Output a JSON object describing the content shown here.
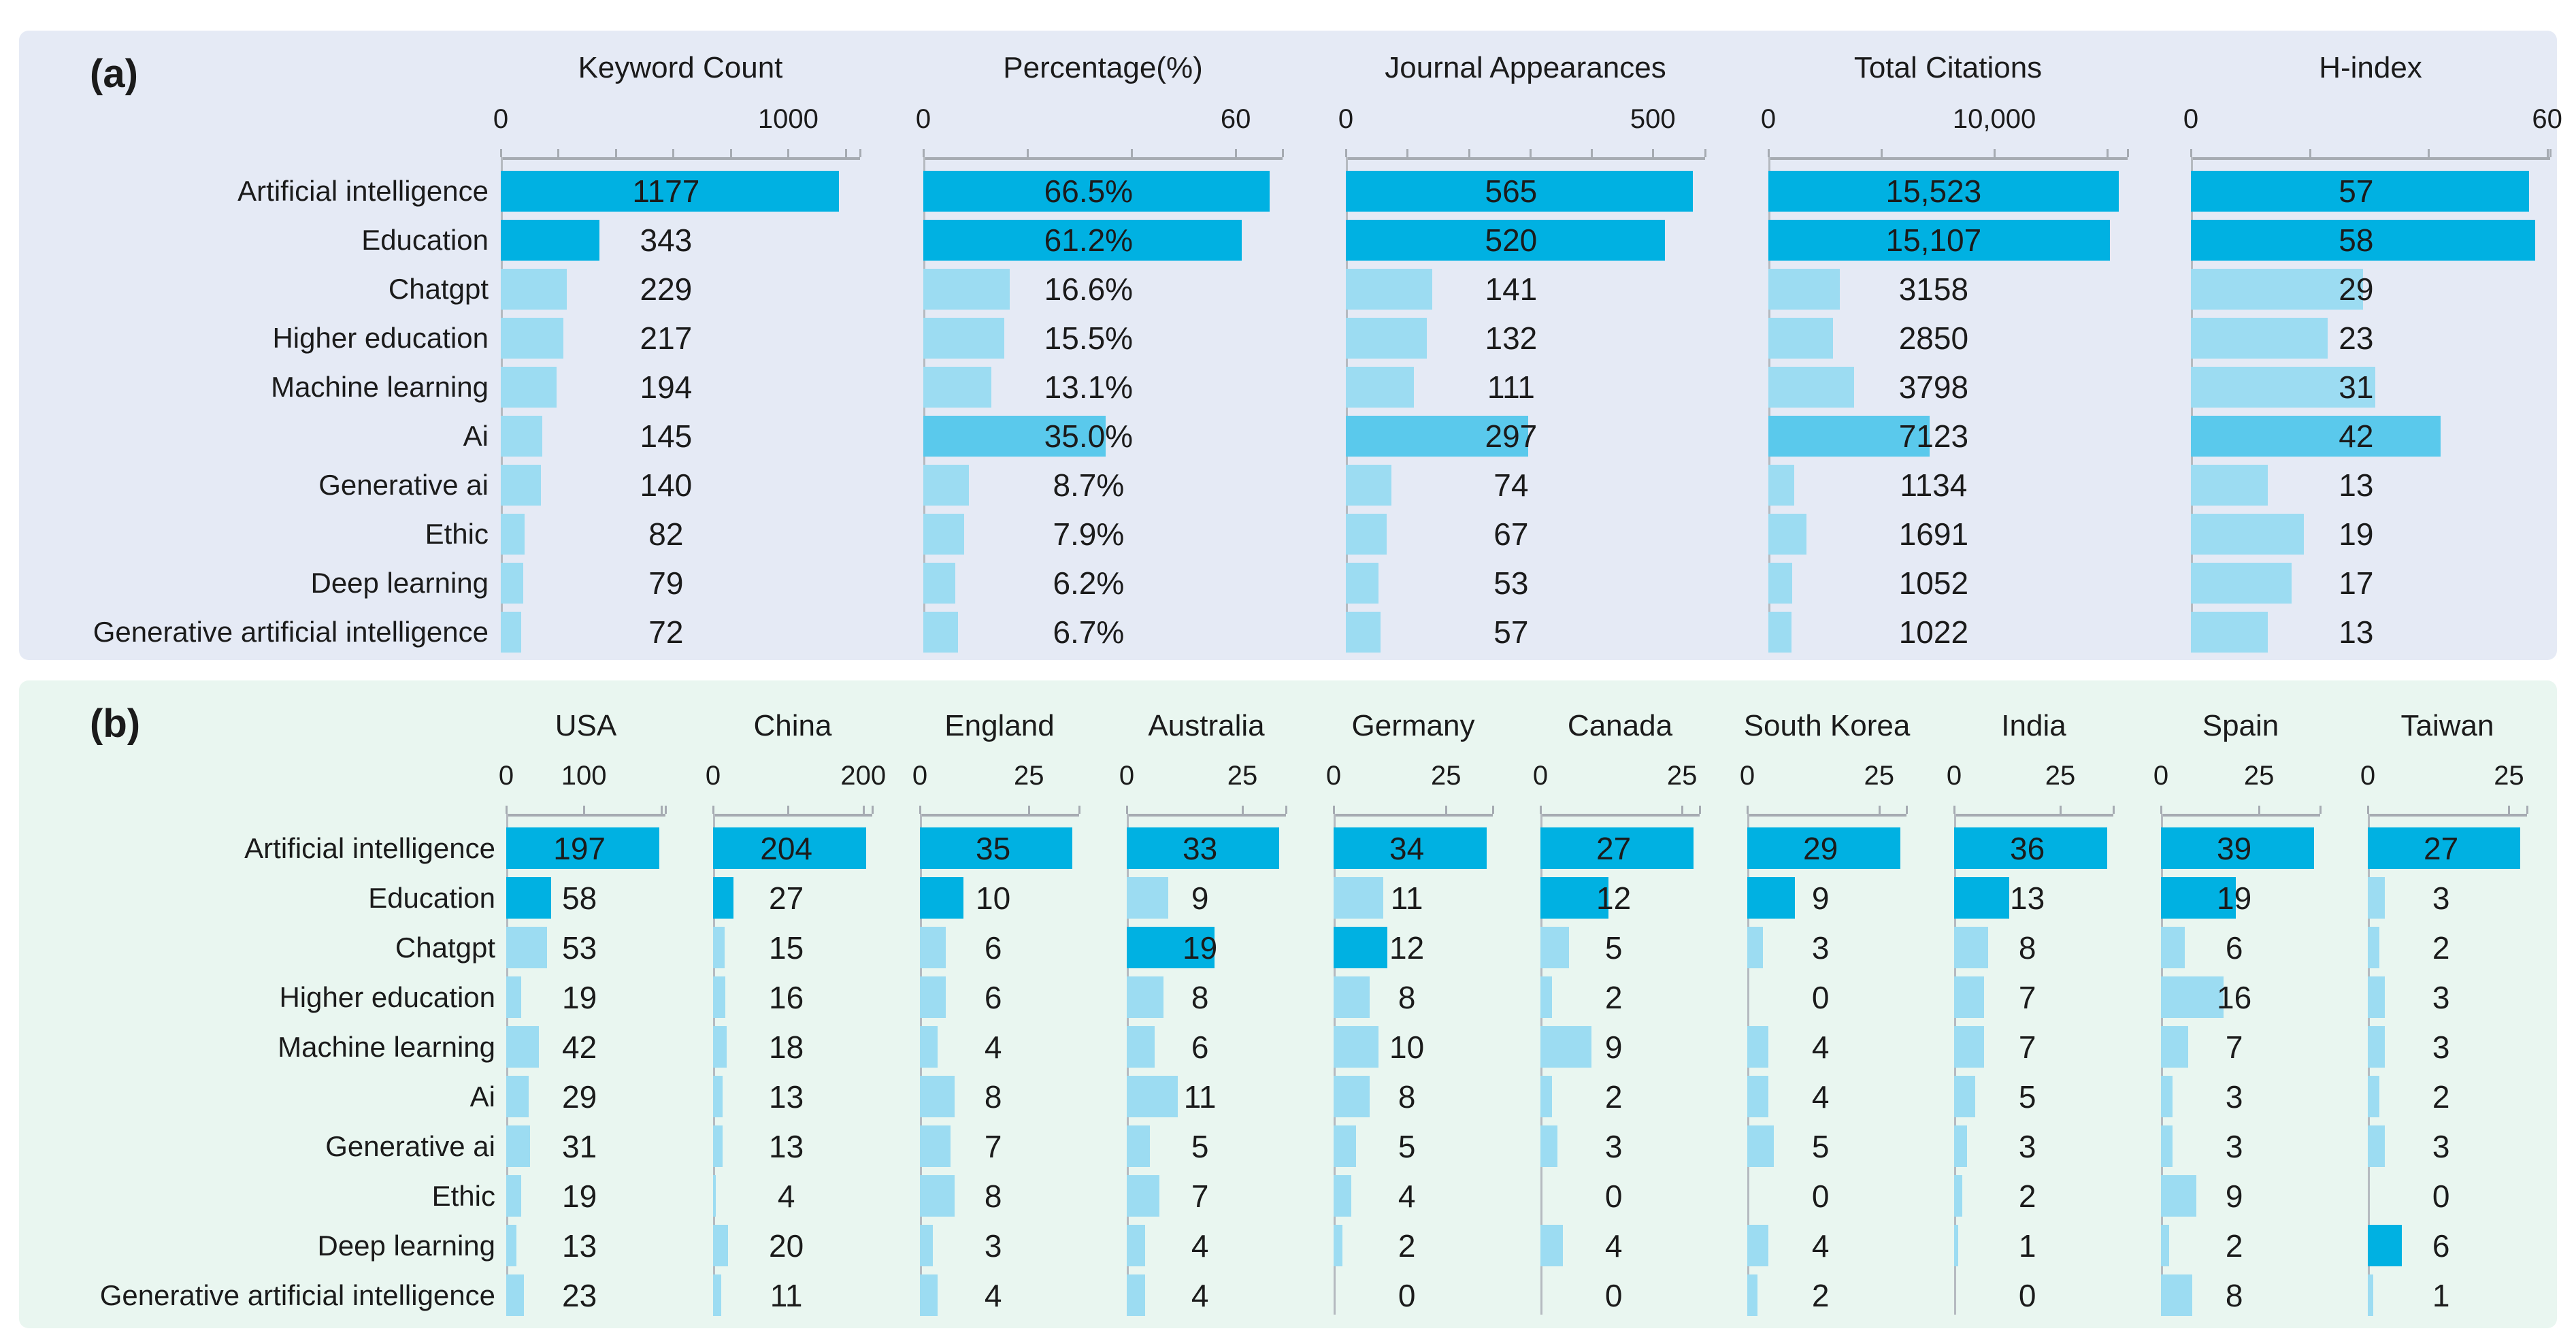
{
  "colors": {
    "bar_dark": "#00b1e2",
    "bar_medium": "#5ac9ec",
    "bar_light": "#9cdcf2",
    "panel_a_bg": "#e5eaf5",
    "panel_b_bg": "#e9f6f0",
    "axis": "#a6abb2",
    "spine": "#b5bac0",
    "text": "#1b1b1b"
  },
  "chart_data": [
    {
      "panel": "(a)",
      "type": "bar",
      "orientation": "horizontal",
      "legend_position": "none",
      "grid": false,
      "categories": [
        "Artificial intelligence",
        "Education",
        "Chatgpt",
        "Higher education",
        "Machine learning",
        "Ai",
        "Generative ai",
        "Ethic",
        "Deep learning",
        "Generative artificial intelligence"
      ],
      "series": [
        {
          "name": "Keyword Count",
          "values": [
            1177,
            343,
            229,
            217,
            194,
            145,
            140,
            82,
            79,
            72
          ],
          "labels": [
            "1177",
            "343",
            "229",
            "217",
            "194",
            "145",
            "140",
            "82",
            "79",
            "72"
          ],
          "axis": {
            "tick0": "0",
            "tick_value": 1000,
            "tick_label": "1000",
            "minor_step": 200,
            "axis_max": 1250
          },
          "emphasis": [
            "dark",
            "dark",
            "light",
            "light",
            "light",
            "light",
            "light",
            "light",
            "light",
            "light"
          ]
        },
        {
          "name": "Percentage(%)",
          "values": [
            66.5,
            61.2,
            16.6,
            15.5,
            13.1,
            35.0,
            8.7,
            7.9,
            6.2,
            6.7
          ],
          "labels": [
            "66.5%",
            "61.2%",
            "16.6%",
            "15.5%",
            "13.1%",
            "35.0%",
            "8.7%",
            "7.9%",
            "6.2%",
            "6.7%"
          ],
          "axis": {
            "tick0": "0",
            "tick_value": 60,
            "tick_label": "60",
            "minor_step": 20,
            "axis_max": 69
          },
          "emphasis": [
            "dark",
            "dark",
            "light",
            "light",
            "light",
            "medium",
            "light",
            "light",
            "light",
            "light"
          ]
        },
        {
          "name": "Journal Appearances",
          "values": [
            565,
            520,
            141,
            132,
            111,
            297,
            74,
            67,
            53,
            57
          ],
          "labels": [
            "565",
            "520",
            "141",
            "132",
            "111",
            "297",
            "74",
            "67",
            "53",
            "57"
          ],
          "axis": {
            "tick0": "0",
            "tick_value": 500,
            "tick_label": "500",
            "minor_step": 100,
            "axis_max": 585
          },
          "emphasis": [
            "dark",
            "dark",
            "light",
            "light",
            "light",
            "medium",
            "light",
            "light",
            "light",
            "light"
          ]
        },
        {
          "name": "Total Citations",
          "values": [
            15523,
            15107,
            3158,
            2850,
            3798,
            7123,
            1134,
            1691,
            1052,
            1022
          ],
          "labels": [
            "15,523",
            "15,107",
            "3158",
            "2850",
            "3798",
            "7123",
            "1134",
            "1691",
            "1052",
            "1022"
          ],
          "axis": {
            "tick0": "0",
            "tick_value": 10000,
            "tick_label": "10,000",
            "minor_step": 5000,
            "axis_max": 15900
          },
          "emphasis": [
            "dark",
            "dark",
            "light",
            "light",
            "light",
            "medium",
            "light",
            "light",
            "light",
            "light"
          ]
        },
        {
          "name": "H-index",
          "values": [
            57,
            58,
            29,
            23,
            31,
            42,
            13,
            19,
            17,
            13
          ],
          "labels": [
            "57",
            "58",
            "29",
            "23",
            "31",
            "42",
            "13",
            "19",
            "17",
            "13"
          ],
          "axis": {
            "tick0": "0",
            "tick_value": 60,
            "tick_label": "60",
            "minor_step": 20,
            "axis_max": 60.5
          },
          "emphasis": [
            "dark",
            "dark",
            "light",
            "light",
            "light",
            "medium",
            "light",
            "light",
            "light",
            "light"
          ]
        }
      ]
    },
    {
      "panel": "(b)",
      "type": "bar",
      "orientation": "horizontal",
      "legend_position": "none",
      "grid": false,
      "categories": [
        "Artificial intelligence",
        "Education",
        "Chatgpt",
        "Higher education",
        "Machine learning",
        "Ai",
        "Generative ai",
        "Ethic",
        "Deep learning",
        "Generative artificial intelligence"
      ],
      "series": [
        {
          "name": "USA",
          "values": [
            197,
            58,
            53,
            19,
            42,
            29,
            31,
            19,
            13,
            23
          ],
          "labels": [
            "197",
            "58",
            "53",
            "19",
            "42",
            "29",
            "31",
            "19",
            "13",
            "23"
          ],
          "axis": {
            "tick0": "0",
            "tick_value": 100,
            "tick_label": "100",
            "minor_step": 100,
            "axis_max": 205
          },
          "emphasis": [
            "dark",
            "dark",
            "light",
            "light",
            "light",
            "light",
            "light",
            "light",
            "light",
            "light"
          ]
        },
        {
          "name": "China",
          "values": [
            204,
            27,
            15,
            16,
            18,
            13,
            13,
            4,
            20,
            11
          ],
          "labels": [
            "204",
            "27",
            "15",
            "16",
            "18",
            "13",
            "13",
            "4",
            "20",
            "11"
          ],
          "axis": {
            "tick0": "0",
            "tick_value": 200,
            "tick_label": "200",
            "minor_step": 100,
            "axis_max": 212
          },
          "emphasis": [
            "dark",
            "dark",
            "light",
            "light",
            "light",
            "light",
            "light",
            "light",
            "light",
            "light"
          ]
        },
        {
          "name": "England",
          "values": [
            35,
            10,
            6,
            6,
            4,
            8,
            7,
            8,
            3,
            4
          ],
          "labels": [
            "35",
            "10",
            "6",
            "6",
            "4",
            "8",
            "7",
            "8",
            "3",
            "4"
          ],
          "axis": {
            "tick0": "0",
            "tick_value": 25,
            "tick_label": "25",
            "minor_step": 25,
            "axis_max": 36.5
          },
          "emphasis": [
            "dark",
            "dark",
            "light",
            "light",
            "light",
            "light",
            "light",
            "light",
            "light",
            "light"
          ]
        },
        {
          "name": "Australia",
          "values": [
            33,
            9,
            19,
            8,
            6,
            11,
            5,
            7,
            4,
            4
          ],
          "labels": [
            "33",
            "9",
            "19",
            "8",
            "6",
            "11",
            "5",
            "7",
            "4",
            "4"
          ],
          "axis": {
            "tick0": "0",
            "tick_value": 25,
            "tick_label": "25",
            "minor_step": 25,
            "axis_max": 34.4
          },
          "emphasis": [
            "dark",
            "light",
            "dark",
            "light",
            "light",
            "light",
            "light",
            "light",
            "light",
            "light"
          ]
        },
        {
          "name": "Germany",
          "values": [
            34,
            11,
            12,
            8,
            10,
            8,
            5,
            4,
            2,
            0
          ],
          "labels": [
            "34",
            "11",
            "12",
            "8",
            "10",
            "8",
            "5",
            "4",
            "2",
            "0"
          ],
          "axis": {
            "tick0": "0",
            "tick_value": 25,
            "tick_label": "25",
            "minor_step": 25,
            "axis_max": 35.4
          },
          "emphasis": [
            "dark",
            "light",
            "dark",
            "light",
            "light",
            "light",
            "light",
            "light",
            "light",
            "light"
          ]
        },
        {
          "name": "Canada",
          "values": [
            27,
            12,
            5,
            2,
            9,
            2,
            3,
            0,
            4,
            0
          ],
          "labels": [
            "27",
            "12",
            "5",
            "2",
            "9",
            "2",
            "3",
            "0",
            "4",
            "0"
          ],
          "axis": {
            "tick0": "0",
            "tick_value": 25,
            "tick_label": "25",
            "minor_step": 25,
            "axis_max": 28.1
          },
          "emphasis": [
            "dark",
            "dark",
            "light",
            "light",
            "light",
            "light",
            "light",
            "light",
            "light",
            "light"
          ]
        },
        {
          "name": "South Korea",
          "values": [
            29,
            9,
            3,
            0,
            4,
            4,
            5,
            0,
            4,
            2
          ],
          "labels": [
            "29",
            "9",
            "3",
            "0",
            "4",
            "4",
            "5",
            "0",
            "4",
            "2"
          ],
          "axis": {
            "tick0": "0",
            "tick_value": 25,
            "tick_label": "25",
            "minor_step": 25,
            "axis_max": 30.2
          },
          "emphasis": [
            "dark",
            "dark",
            "light",
            "light",
            "light",
            "light",
            "light",
            "light",
            "light",
            "light"
          ]
        },
        {
          "name": "India",
          "values": [
            36,
            13,
            8,
            7,
            7,
            5,
            3,
            2,
            1,
            0
          ],
          "labels": [
            "36",
            "13",
            "8",
            "7",
            "7",
            "5",
            "3",
            "2",
            "1",
            "0"
          ],
          "axis": {
            "tick0": "0",
            "tick_value": 25,
            "tick_label": "25",
            "minor_step": 25,
            "axis_max": 37.5
          },
          "emphasis": [
            "dark",
            "dark",
            "light",
            "light",
            "light",
            "light",
            "light",
            "light",
            "light",
            "light"
          ]
        },
        {
          "name": "Spain",
          "values": [
            39,
            19,
            6,
            16,
            7,
            3,
            3,
            9,
            2,
            8
          ],
          "labels": [
            "39",
            "19",
            "6",
            "16",
            "7",
            "3",
            "3",
            "9",
            "2",
            "8"
          ],
          "axis": {
            "tick0": "0",
            "tick_value": 25,
            "tick_label": "25",
            "minor_step": 25,
            "axis_max": 40.6
          },
          "emphasis": [
            "dark",
            "dark",
            "light",
            "light",
            "light",
            "light",
            "light",
            "light",
            "light",
            "light"
          ]
        },
        {
          "name": "Taiwan",
          "values": [
            27,
            3,
            2,
            3,
            3,
            2,
            3,
            0,
            6,
            1
          ],
          "labels": [
            "27",
            "3",
            "2",
            "3",
            "3",
            "2",
            "3",
            "0",
            "6",
            "1"
          ],
          "axis": {
            "tick0": "0",
            "tick_value": 25,
            "tick_label": "25",
            "minor_step": 25,
            "axis_max": 28.2
          },
          "emphasis": [
            "dark",
            "light",
            "light",
            "light",
            "light",
            "light",
            "light",
            "light",
            "dark",
            "light"
          ]
        }
      ]
    }
  ]
}
